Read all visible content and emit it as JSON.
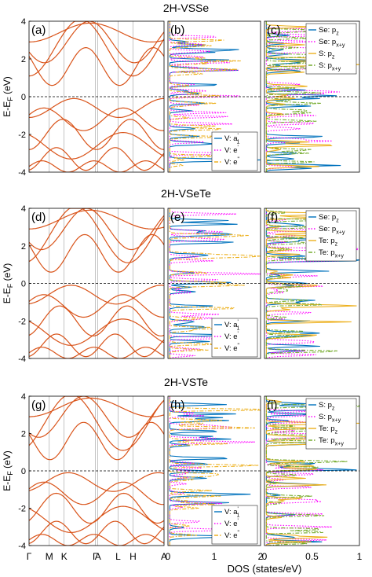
{
  "figure": {
    "ylabel_main": "E-E",
    "ylabel_sub": "F",
    "ylabel_unit": " (eV)",
    "xlabel_dos": "DOS (states/eV)"
  },
  "colors": {
    "band": "#d95319",
    "a1": "#0072bd",
    "e1": "#ff00ff",
    "e2": "#edb120",
    "green": "#77ac30",
    "fermi": "#000000",
    "kline": "#888888"
  },
  "kpath": {
    "labels": [
      "Γ",
      "M",
      "K",
      "Γ",
      "A",
      "L",
      "H",
      "A"
    ],
    "positions": [
      0,
      0.15,
      0.26,
      0.49,
      0.51,
      0.66,
      0.77,
      1.0
    ]
  },
  "dos_ticks_b": [
    "0",
    "1",
    "2"
  ],
  "dos_ticks_c": [
    "0",
    "0.5",
    "1"
  ],
  "chart_data": [
    {
      "type": "line",
      "title": "2H-VSSe",
      "ylim": [
        -4,
        4
      ],
      "yticks": [
        "4",
        "2",
        "0",
        "-2",
        "-4"
      ],
      "panels": [
        {
          "label": "(a)",
          "kind": "bands"
        },
        {
          "label": "(b)",
          "kind": "dos",
          "xlim": [
            0,
            2
          ],
          "legend": [
            {
              "main": "V: a",
              "sub": "1",
              "sup": "'",
              "color": "a1",
              "dash": "solid"
            },
            {
              "main": "V: e",
              "sub": "",
              "sup": "'",
              "color": "e1",
              "dash": "dot"
            },
            {
              "main": "V: e",
              "sub": "",
              "sup": "\"",
              "color": "e2",
              "dash": "dashdot"
            }
          ]
        },
        {
          "label": "(c)",
          "kind": "dos",
          "xlim": [
            0,
            1
          ],
          "legend": [
            {
              "main": "Se: p",
              "sub": "z",
              "sup": "",
              "color": "a1",
              "dash": "solid"
            },
            {
              "main": "Se: p",
              "sub": "x+y",
              "sup": "",
              "color": "e1",
              "dash": "dot"
            },
            {
              "main": "S: p",
              "sub": "z",
              "sup": "",
              "color": "e2",
              "dash": "solid"
            },
            {
              "main": "S: p",
              "sub": "x+y",
              "sup": "",
              "color": "green",
              "dash": "dashdot"
            }
          ]
        }
      ]
    },
    {
      "type": "line",
      "title": "2H-VSeTe",
      "ylim": [
        -4,
        4
      ],
      "yticks": [
        "4",
        "2",
        "0",
        "-2",
        "-4"
      ],
      "panels": [
        {
          "label": "(d)",
          "kind": "bands"
        },
        {
          "label": "(e)",
          "kind": "dos",
          "xlim": [
            0,
            2
          ],
          "legend": [
            {
              "main": "V: a",
              "sub": "1",
              "sup": "'",
              "color": "a1",
              "dash": "solid"
            },
            {
              "main": "V: e",
              "sub": "",
              "sup": "'",
              "color": "e1",
              "dash": "dot"
            },
            {
              "main": "V: e",
              "sub": "",
              "sup": "\"",
              "color": "e2",
              "dash": "dashdot"
            }
          ]
        },
        {
          "label": "(f)",
          "kind": "dos",
          "xlim": [
            0,
            1
          ],
          "legend": [
            {
              "main": "Se: p",
              "sub": "z",
              "sup": "",
              "color": "a1",
              "dash": "solid"
            },
            {
              "main": "Se: p",
              "sub": "x+y",
              "sup": "",
              "color": "e1",
              "dash": "dot"
            },
            {
              "main": "Te: p",
              "sub": "z",
              "sup": "",
              "color": "e2",
              "dash": "solid"
            },
            {
              "main": "Te: p",
              "sub": "x+y",
              "sup": "",
              "color": "green",
              "dash": "dashdot"
            }
          ]
        }
      ]
    },
    {
      "type": "line",
      "title": "2H-VSTe",
      "ylim": [
        -4,
        4
      ],
      "yticks": [
        "4",
        "2",
        "0",
        "-2",
        "-4"
      ],
      "panels": [
        {
          "label": "(g)",
          "kind": "bands"
        },
        {
          "label": "(h)",
          "kind": "dos",
          "xlim": [
            0,
            2
          ],
          "legend": [
            {
              "main": "V: a",
              "sub": "1",
              "sup": "'",
              "color": "a1",
              "dash": "solid"
            },
            {
              "main": "V: e",
              "sub": "",
              "sup": "'",
              "color": "e1",
              "dash": "dot"
            },
            {
              "main": "V: e",
              "sub": "",
              "sup": "\"",
              "color": "e2",
              "dash": "dashdot"
            }
          ]
        },
        {
          "label": "(i)",
          "kind": "dos",
          "xlim": [
            0,
            1
          ],
          "legend": [
            {
              "main": "S: p",
              "sub": "z",
              "sup": "",
              "color": "a1",
              "dash": "solid"
            },
            {
              "main": "S: p",
              "sub": "x+y",
              "sup": "",
              "color": "e1",
              "dash": "dot"
            },
            {
              "main": "Te: p",
              "sub": "z",
              "sup": "",
              "color": "e2",
              "dash": "solid"
            },
            {
              "main": "Te: p",
              "sub": "x+y",
              "sup": "",
              "color": "green",
              "dash": "dashdot"
            }
          ]
        }
      ]
    }
  ]
}
